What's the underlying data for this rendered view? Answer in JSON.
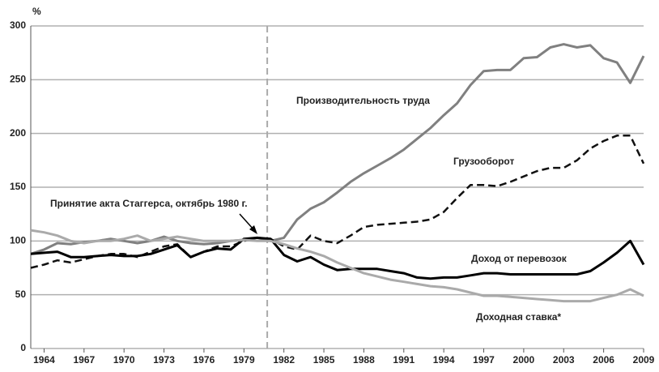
{
  "chart_data": {
    "type": "line",
    "y_unit": "%",
    "x": [
      1963,
      1964,
      1965,
      1966,
      1967,
      1968,
      1969,
      1970,
      1971,
      1972,
      1973,
      1974,
      1975,
      1976,
      1977,
      1978,
      1979,
      1980,
      1981,
      1982,
      1983,
      1984,
      1985,
      1986,
      1987,
      1988,
      1989,
      1990,
      1991,
      1992,
      1993,
      1994,
      1995,
      1996,
      1997,
      1998,
      1999,
      2000,
      2001,
      2002,
      2003,
      2004,
      2005,
      2006,
      2007,
      2008,
      2009
    ],
    "series": [
      {
        "name": "Производительность труда",
        "color": "#808080",
        "dash": false,
        "width": 3,
        "values": [
          88,
          92,
          98,
          97,
          99,
          100,
          102,
          100,
          98,
          100,
          104,
          100,
          98,
          97,
          98,
          100,
          101,
          103,
          100,
          103,
          120,
          130,
          136,
          145,
          155,
          163,
          170,
          177,
          185,
          195,
          205,
          217,
          228,
          245,
          258,
          259,
          259,
          270,
          271,
          280,
          283,
          280,
          282,
          270,
          266,
          247,
          272
        ]
      },
      {
        "name": "Грузооборот",
        "color": "#111111",
        "dash": true,
        "width": 2.5,
        "values": [
          75,
          78,
          82,
          80,
          83,
          86,
          88,
          88,
          85,
          90,
          95,
          97,
          85,
          90,
          95,
          95,
          100,
          103,
          102,
          95,
          92,
          105,
          100,
          98,
          105,
          113,
          115,
          116,
          117,
          118,
          120,
          127,
          140,
          152,
          152,
          151,
          155,
          160,
          165,
          168,
          168,
          175,
          186,
          193,
          198,
          198,
          172
        ]
      },
      {
        "name": "Доход от перевозок",
        "color": "#000000",
        "dash": false,
        "width": 3,
        "values": [
          88,
          89,
          90,
          85,
          85,
          86,
          87,
          86,
          86,
          88,
          92,
          96,
          85,
          90,
          93,
          92,
          102,
          103,
          102,
          87,
          81,
          85,
          78,
          73,
          74,
          74,
          74,
          72,
          70,
          66,
          65,
          66,
          66,
          68,
          70,
          70,
          69,
          69,
          69,
          69,
          69,
          69,
          72,
          80,
          89,
          100,
          78
        ]
      },
      {
        "name": "Доходная ставка*",
        "color": "#aaaaaa",
        "dash": false,
        "width": 3,
        "values": [
          110,
          108,
          105,
          100,
          98,
          100,
          100,
          102,
          105,
          100,
          102,
          104,
          102,
          100,
          100,
          100,
          101,
          100,
          100,
          97,
          93,
          90,
          86,
          80,
          75,
          70,
          67,
          64,
          62,
          60,
          58,
          57,
          55,
          52,
          49,
          49,
          48,
          47,
          46,
          45,
          44,
          44,
          44,
          47,
          50,
          55,
          49
        ]
      }
    ],
    "annotation": {
      "text": "Принятие акта Стаггерса, октябрь 1980 г.",
      "x": 1980.75
    },
    "xlim": [
      1963,
      2009
    ],
    "xticks": [
      1964,
      1967,
      1970,
      1973,
      1976,
      1979,
      1982,
      1985,
      1988,
      1991,
      1994,
      1997,
      2000,
      2003,
      2006,
      2009
    ],
    "ylim": [
      0,
      300
    ],
    "yticks": [
      0,
      50,
      100,
      150,
      200,
      250,
      300
    ],
    "grid": true
  }
}
